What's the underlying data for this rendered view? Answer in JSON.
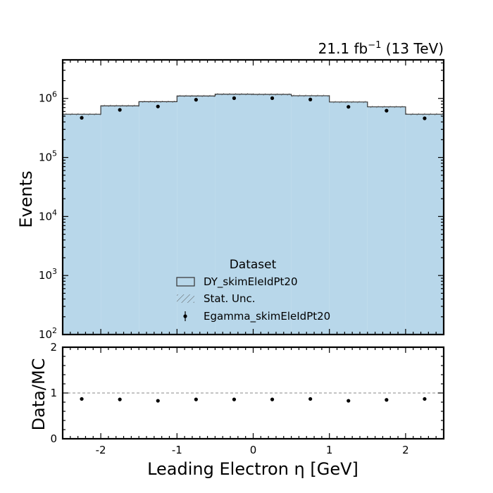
{
  "chart_data": {
    "type": "bar",
    "lumi_label": {
      "base": "21.1 fb",
      "sup": "−1",
      "energy": " (13 TeV)"
    },
    "main_panel": {
      "ylabel": "Events",
      "yscale": "log",
      "ylim": [
        100,
        4500000
      ],
      "ytick_values": [
        100,
        1000,
        10000,
        100000,
        1000000
      ],
      "ytick_labels": [
        {
          "base": "10",
          "exp": "2"
        },
        {
          "base": "10",
          "exp": "3"
        },
        {
          "base": "10",
          "exp": "4"
        },
        {
          "base": "10",
          "exp": "5"
        },
        {
          "base": "10",
          "exp": "6"
        }
      ]
    },
    "ratio_panel": {
      "ylabel": "Data/MC",
      "ylim": [
        0,
        2
      ],
      "yticks": [
        "0",
        "1",
        "2"
      ],
      "reference_line": 1
    },
    "xlabel": "Leading Electron η [GeV]",
    "xlim": [
      -2.5,
      2.5
    ],
    "xticks": [
      "-2",
      "-1",
      "0",
      "1",
      "2"
    ],
    "bin_edges": [
      -2.5,
      -2.0,
      -1.5,
      -1.0,
      -0.5,
      0.0,
      0.5,
      1.0,
      1.5,
      2.0,
      2.5
    ],
    "series": [
      {
        "name": "DY_skimEleIdPt20",
        "kind": "mc_histogram",
        "color": "#b8d7ea",
        "values": [
          540000,
          750000,
          880000,
          1100000,
          1180000,
          1170000,
          1110000,
          870000,
          720000,
          540000
        ]
      },
      {
        "name": "Egamma_skimEleIdPt20",
        "kind": "data_points",
        "color": "#000000",
        "values": [
          470000,
          640000,
          730000,
          950000,
          1010000,
          1010000,
          960000,
          720000,
          620000,
          460000
        ]
      }
    ],
    "ratio_values": [
      0.87,
      0.86,
      0.83,
      0.86,
      0.86,
      0.86,
      0.87,
      0.83,
      0.85,
      0.87
    ],
    "legend": {
      "title": "Dataset",
      "placement": "lower-center",
      "entries": [
        {
          "label": "DY_skimEleIdPt20",
          "kind": "fill"
        },
        {
          "label": "Stat. Unc.",
          "kind": "hatch"
        },
        {
          "label": "Egamma_skimEleIdPt20",
          "kind": "errorbar"
        }
      ]
    }
  }
}
